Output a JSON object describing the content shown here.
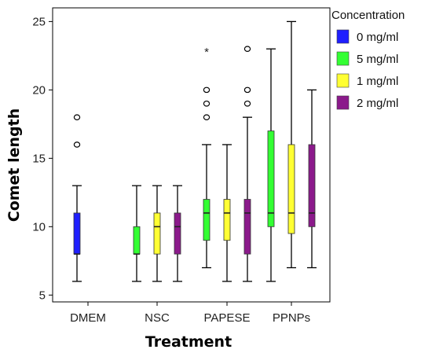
{
  "chart_data": {
    "type": "box",
    "xlabel": "Treatment",
    "ylabel": "Comet length",
    "ylim": [
      4.5,
      26
    ],
    "yticks": [
      5,
      10,
      15,
      20,
      25
    ],
    "categories": [
      "DMEM",
      "NSC",
      "PAPESE",
      "PPNPs"
    ],
    "legend": {
      "title": "Concentration",
      "position": "right",
      "entries": [
        {
          "label": "0 mg/ml",
          "color": "#1f1fff"
        },
        {
          "label": "5 mg/ml",
          "color": "#33ff33"
        },
        {
          "label": "1 mg/ml",
          "color": "#ffff33"
        },
        {
          "label": "2 mg/ml",
          "color": "#8b1a8b"
        }
      ]
    },
    "boxes": [
      {
        "category": "DMEM",
        "series": "0 mg/ml",
        "min": 6,
        "q1": 8,
        "median": 8,
        "q3": 11,
        "max": 13,
        "outliers": [
          16,
          18
        ],
        "extremes": []
      },
      {
        "category": "NSC",
        "series": "5 mg/ml",
        "min": 6,
        "q1": 8,
        "median": 8,
        "q3": 10,
        "max": 13,
        "outliers": [],
        "extremes": []
      },
      {
        "category": "NSC",
        "series": "1 mg/ml",
        "min": 6,
        "q1": 8,
        "median": 10,
        "q3": 11,
        "max": 13,
        "outliers": [],
        "extremes": []
      },
      {
        "category": "NSC",
        "series": "2 mg/ml",
        "min": 6,
        "q1": 8,
        "median": 10,
        "q3": 11,
        "max": 13,
        "outliers": [],
        "extremes": []
      },
      {
        "category": "PAPESE",
        "series": "5 mg/ml",
        "min": 7,
        "q1": 9,
        "median": 11,
        "q3": 12,
        "max": 16,
        "outliers": [
          18,
          19,
          20
        ],
        "extremes": [
          23
        ]
      },
      {
        "category": "PAPESE",
        "series": "1 mg/ml",
        "min": 6,
        "q1": 9,
        "median": 11,
        "q3": 12,
        "max": 16,
        "outliers": [],
        "extremes": []
      },
      {
        "category": "PAPESE",
        "series": "2 mg/ml",
        "min": 6,
        "q1": 8,
        "median": 11,
        "q3": 12,
        "max": 18,
        "outliers": [
          19,
          20,
          23
        ],
        "extremes": []
      },
      {
        "category": "PPNPs",
        "series": "5 mg/ml",
        "min": 6,
        "q1": 10,
        "median": 11,
        "q3": 17,
        "max": 23,
        "outliers": [],
        "extremes": []
      },
      {
        "category": "PPNPs",
        "series": "1 mg/ml",
        "min": 7,
        "q1": 9.5,
        "median": 11,
        "q3": 16,
        "max": 25,
        "outliers": [],
        "extremes": []
      },
      {
        "category": "PPNPs",
        "series": "2 mg/ml",
        "min": 7,
        "q1": 10,
        "median": 11,
        "q3": 16,
        "max": 20,
        "outliers": [],
        "extremes": []
      }
    ]
  }
}
